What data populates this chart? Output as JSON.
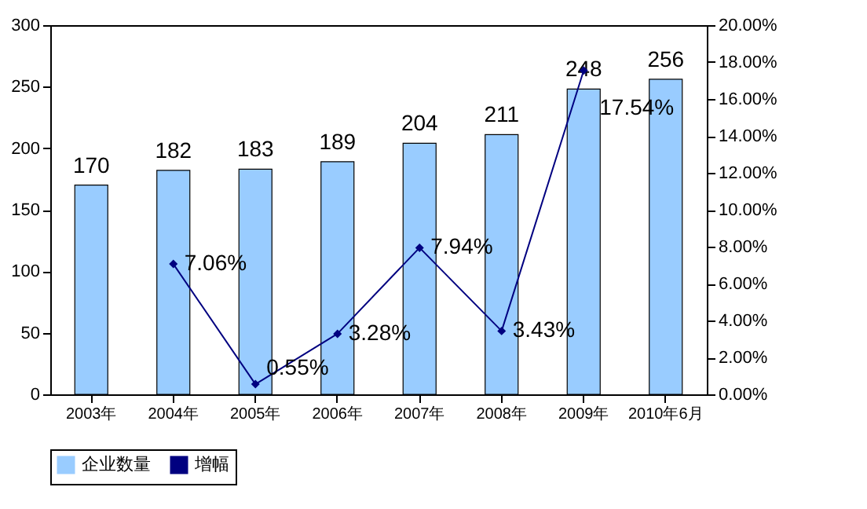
{
  "chart_data": {
    "type": "bar",
    "categories": [
      "2003年",
      "2004年",
      "2005年",
      "2006年",
      "2007年",
      "2008年",
      "2009年",
      "2010年6月"
    ],
    "series": [
      {
        "name": "企业数量",
        "color": "#99ccff",
        "values": [
          170,
          182,
          183,
          189,
          204,
          211,
          248,
          256
        ],
        "value_labels": [
          "170",
          "182",
          "183",
          "189",
          "204",
          "211",
          "248",
          "256"
        ]
      },
      {
        "name": "增幅",
        "type": "line",
        "axis": "y2",
        "color": "#000080",
        "marker": "diamond",
        "values": [
          null,
          7.06,
          0.55,
          3.28,
          7.94,
          3.43,
          17.54,
          null
        ],
        "value_labels": [
          null,
          "7.06%",
          "0.55%",
          "3.28%",
          "7.94%",
          "3.43%",
          "17.54%",
          null
        ]
      }
    ],
    "ylim": [
      0,
      300
    ],
    "yticks": [
      0,
      50,
      100,
      150,
      200,
      250,
      300
    ],
    "y2lim": [
      0,
      20
    ],
    "y2ticks": [
      {
        "value": 0,
        "label": "0.00%"
      },
      {
        "value": 2,
        "label": "2.00%"
      },
      {
        "value": 4,
        "label": "4.00%"
      },
      {
        "value": 6,
        "label": "6.00%"
      },
      {
        "value": 8,
        "label": "8.00%"
      },
      {
        "value": 10,
        "label": "10.00%"
      },
      {
        "value": 12,
        "label": "12.00%"
      },
      {
        "value": 14,
        "label": "14.00%"
      },
      {
        "value": 16,
        "label": "16.00%"
      },
      {
        "value": 18,
        "label": "18.00%"
      },
      {
        "value": 20,
        "label": "20.00%"
      }
    ],
    "grid": false,
    "legend": "bottom"
  }
}
